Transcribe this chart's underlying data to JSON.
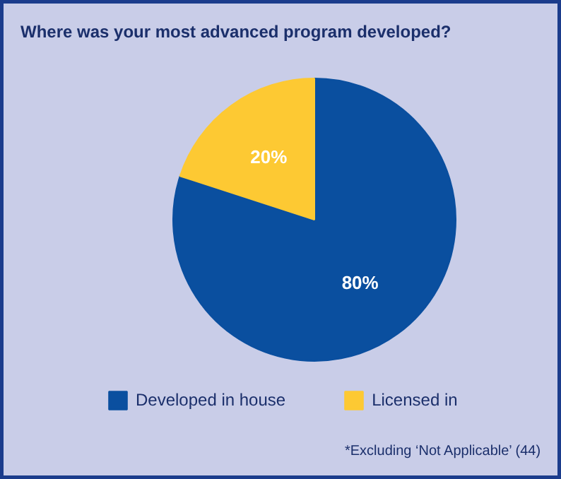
{
  "chart_data": {
    "type": "pie",
    "title": "Where was your most advanced program developed?",
    "categories": [
      "Developed in house",
      "Licensed in"
    ],
    "values": [
      80,
      20
    ],
    "colors": [
      "#0a4f9f",
      "#fdc933"
    ],
    "value_labels": [
      "80%",
      "20%"
    ],
    "legend": "bottom",
    "annotations": [
      "*Excluding ‘Not Applicable’ (44)"
    ]
  }
}
